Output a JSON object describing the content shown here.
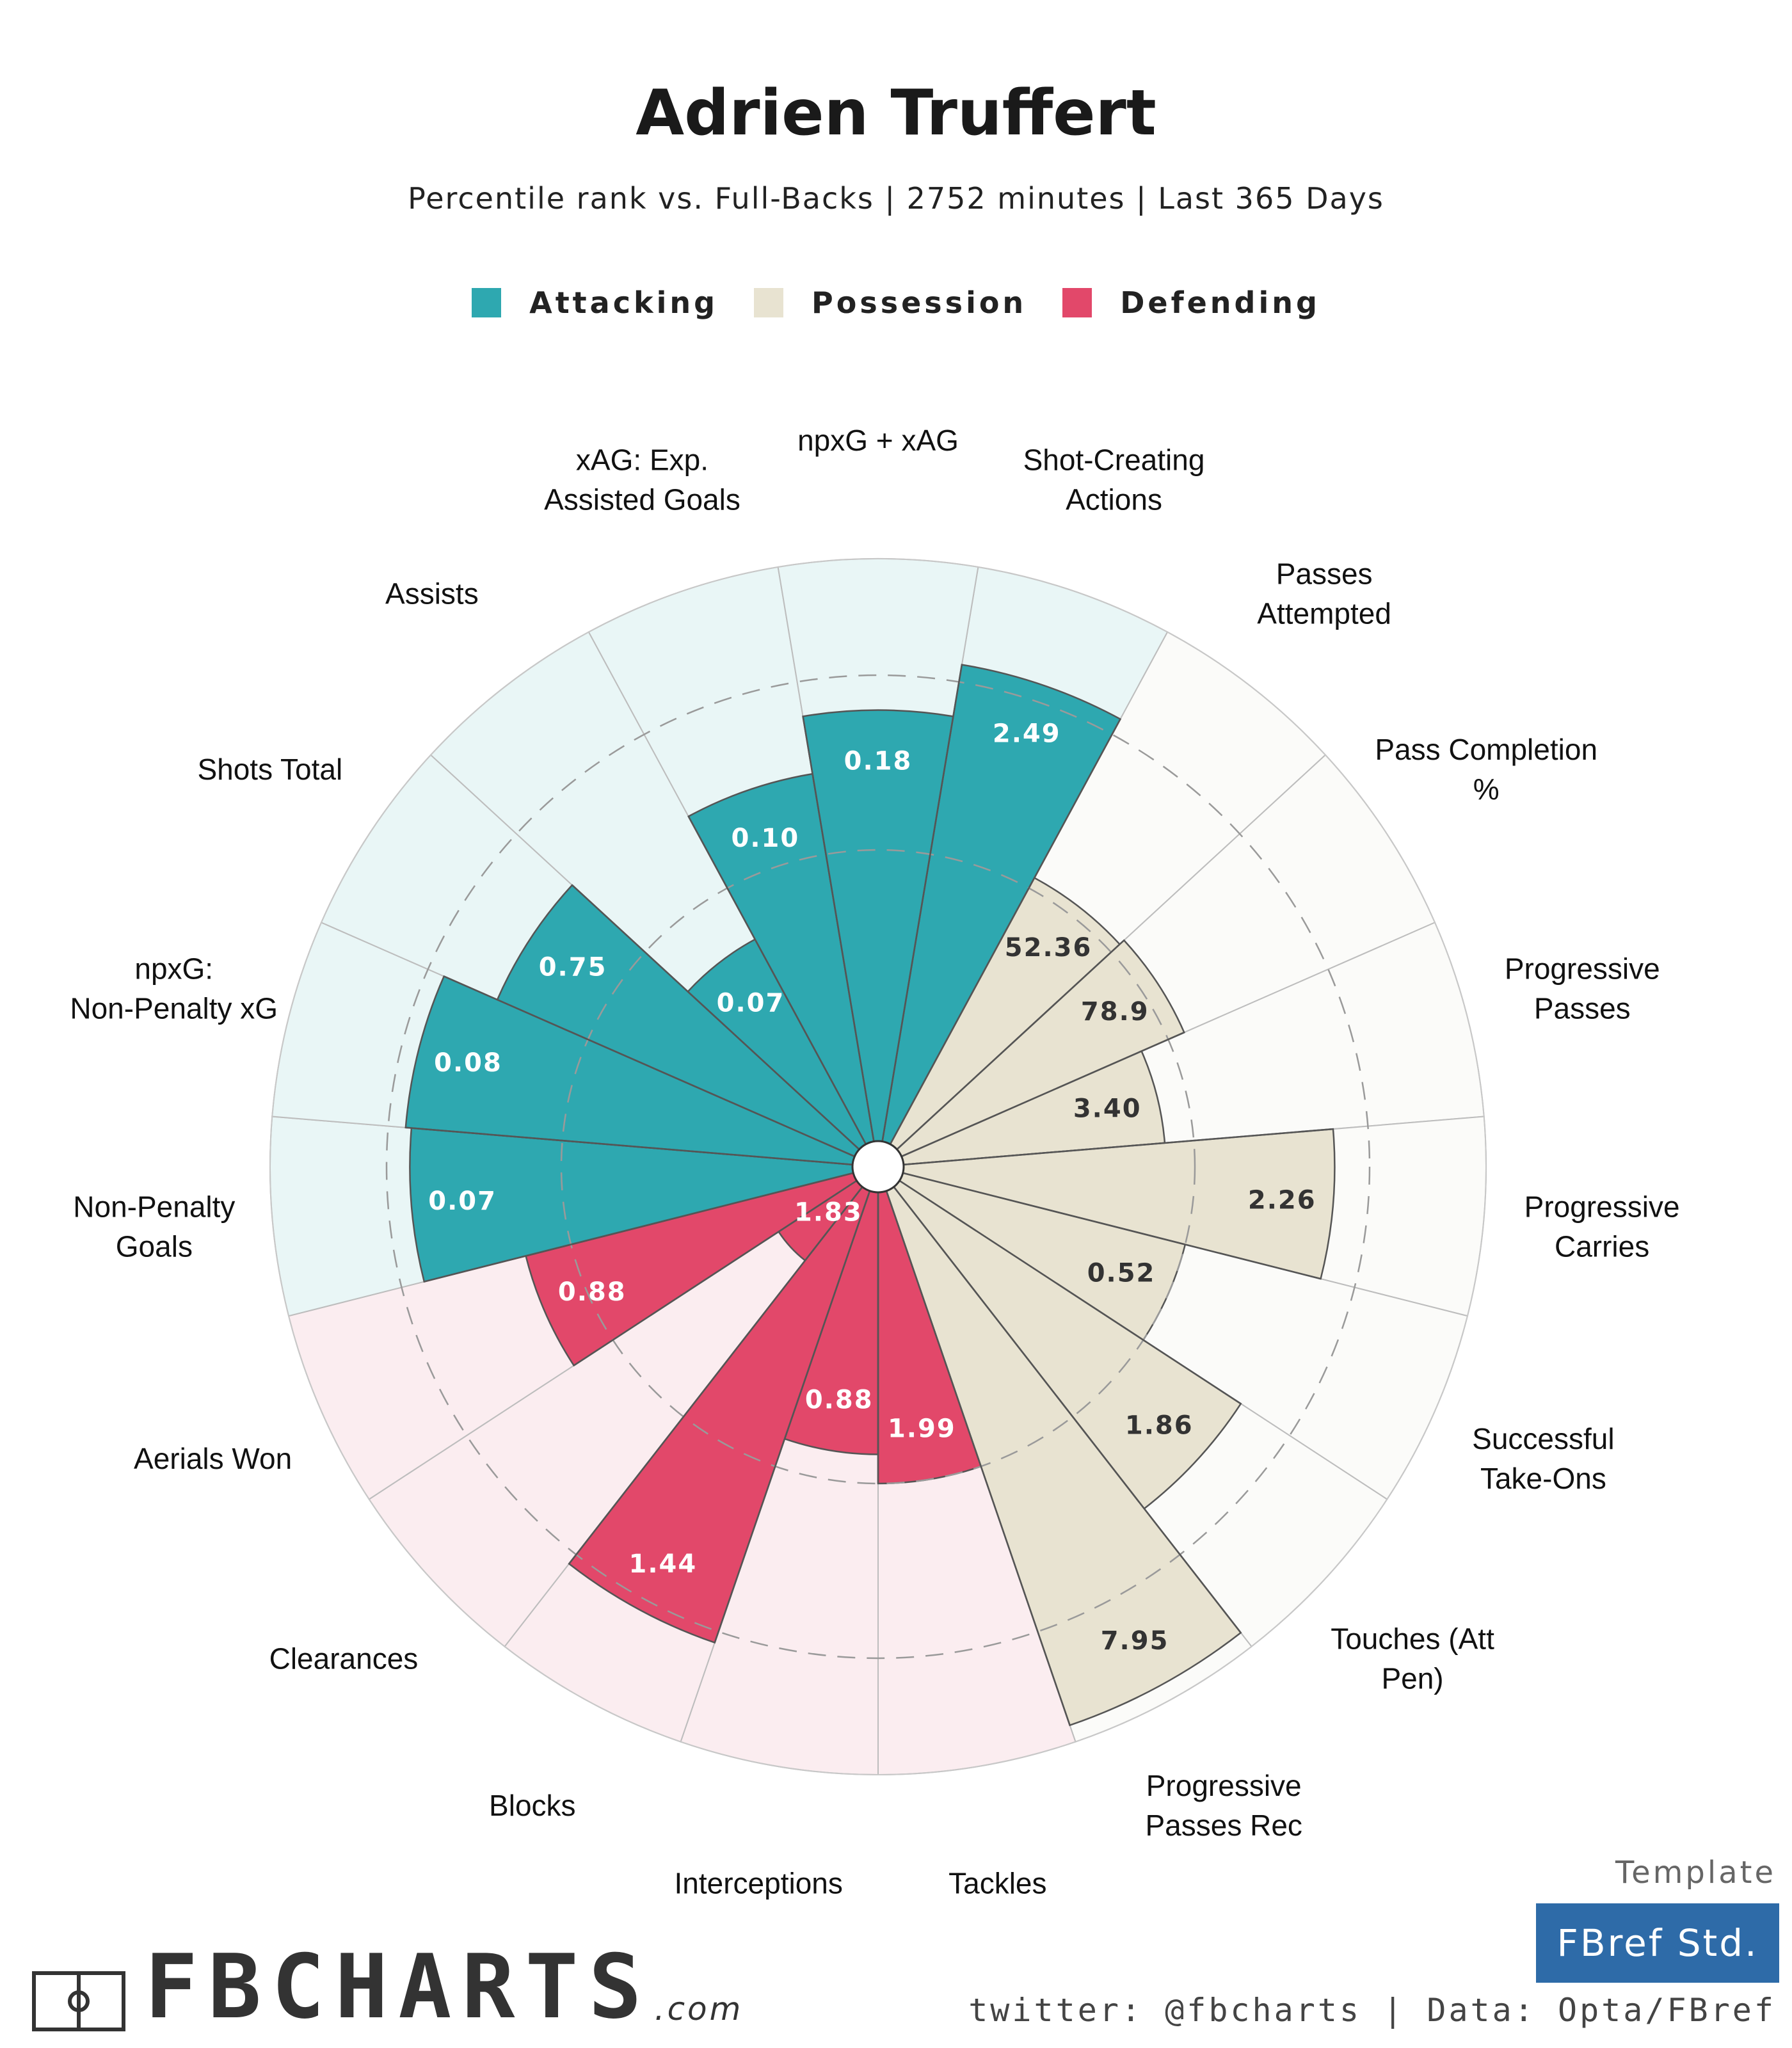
{
  "title": "Adrien Truffert",
  "subtitle": "Percentile rank vs. Full-Backs | 2752 minutes | Last 365 Days",
  "legend": [
    {
      "label": "Attacking",
      "color": "#2ea8b0"
    },
    {
      "label": "Possession",
      "color": "#e8e3d1"
    },
    {
      "label": "Defending",
      "color": "#e2486a"
    }
  ],
  "chart_data": {
    "type": "polar-bar",
    "title": "Adrien Truffert",
    "r_range": [
      0,
      100
    ],
    "gridlines": [
      50,
      80
    ],
    "categories": [
      {
        "label": "Shot-Creating Actions",
        "group": "Attacking",
        "value": 2.49,
        "display": "2.49",
        "percentile": 83
      },
      {
        "label": "Passes Attempted",
        "group": "Possession",
        "value": 52.36,
        "display": "52.36",
        "percentile": 52
      },
      {
        "label": "Pass Completion %",
        "group": "Possession",
        "value": 78.9,
        "display": "78.9",
        "percentile": 53
      },
      {
        "label": "Progressive Passes",
        "group": "Possession",
        "value": 3.4,
        "display": "3.40",
        "percentile": 45
      },
      {
        "label": "Progressive Carries",
        "group": "Possession",
        "value": 2.26,
        "display": "2.26",
        "percentile": 74
      },
      {
        "label": "Successful Take-Ons",
        "group": "Possession",
        "value": 0.52,
        "display": "0.52",
        "percentile": 50
      },
      {
        "label": "Touches (Att Pen)",
        "group": "Possession",
        "value": 1.86,
        "display": "1.86",
        "percentile": 70
      },
      {
        "label": "Progressive Passes Rec",
        "group": "Possession",
        "value": 7.95,
        "display": "7.95",
        "percentile": 97
      },
      {
        "label": "Tackles",
        "group": "Defending",
        "value": 1.99,
        "display": "1.99",
        "percentile": 50
      },
      {
        "label": "Interceptions",
        "group": "Defending",
        "value": 0.88,
        "display": "0.88",
        "percentile": 45
      },
      {
        "label": "Blocks",
        "group": "Defending",
        "value": 1.44,
        "display": "1.44",
        "percentile": 82
      },
      {
        "label": "Clearances",
        "group": "Defending",
        "value": 1.83,
        "display": "1.83",
        "percentile": 16
      },
      {
        "label": "Aerials Won",
        "group": "Defending",
        "value": 0.88,
        "display": "0.88",
        "percentile": 58
      },
      {
        "label": "Non-Penalty Goals",
        "group": "Attacking",
        "value": 0.07,
        "display": "0.07",
        "percentile": 76
      },
      {
        "label": "npxG: Non-Penalty xG",
        "group": "Attacking",
        "value": 0.08,
        "display": "0.08",
        "percentile": 77
      },
      {
        "label": "Shots Total",
        "group": "Attacking",
        "value": 0.75,
        "display": "0.75",
        "percentile": 67
      },
      {
        "label": "Assists",
        "group": "Attacking",
        "value": 0.07,
        "display": "0.07",
        "percentile": 40
      },
      {
        "label": "xAG: Exp. Assisted Goals",
        "group": "Attacking",
        "value": 0.1,
        "display": "0.10",
        "percentile": 64
      },
      {
        "label": "npxG + xAG",
        "group": "Attacking",
        "value": 0.18,
        "display": "0.18",
        "percentile": 74
      }
    ]
  },
  "footer": {
    "logo_text": "FBCHARTS",
    "logo_sub": ".com",
    "template_label": "Template",
    "template_name": "FBref Std.",
    "credit": "twitter: @fbcharts | Data: Opta/FBref",
    "template_color": "#2e6ba8"
  }
}
